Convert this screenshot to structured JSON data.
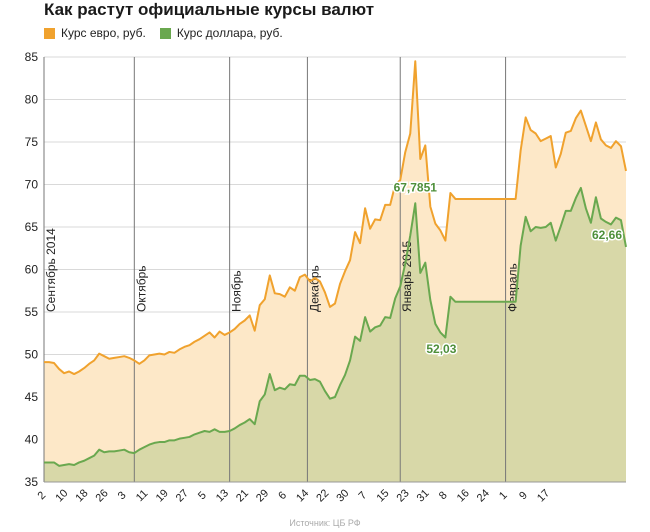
{
  "chart_data": {
    "type": "area",
    "title": "Как растут официальные курсы валют",
    "source": "Источник: ЦБ РФ",
    "ylim": [
      35,
      85
    ],
    "yticks": [
      35,
      40,
      45,
      50,
      55,
      60,
      65,
      70,
      75,
      80,
      85
    ],
    "grid": "horizontal",
    "legend_position": "top-left",
    "xticks": [
      {
        "i": 0,
        "label": "2"
      },
      {
        "i": 4,
        "label": "10"
      },
      {
        "i": 8,
        "label": "18"
      },
      {
        "i": 12,
        "label": "26"
      },
      {
        "i": 16,
        "label": "3"
      },
      {
        "i": 20,
        "label": "11"
      },
      {
        "i": 24,
        "label": "19"
      },
      {
        "i": 28,
        "label": "27"
      },
      {
        "i": 32,
        "label": "5"
      },
      {
        "i": 36,
        "label": "13"
      },
      {
        "i": 40,
        "label": "21"
      },
      {
        "i": 44,
        "label": "29"
      },
      {
        "i": 48,
        "label": "6"
      },
      {
        "i": 52,
        "label": "14"
      },
      {
        "i": 56,
        "label": "22"
      },
      {
        "i": 60,
        "label": "30"
      },
      {
        "i": 64,
        "label": "7"
      },
      {
        "i": 68,
        "label": "15"
      },
      {
        "i": 72,
        "label": "23"
      },
      {
        "i": 76,
        "label": "31"
      },
      {
        "i": 80,
        "label": "8"
      },
      {
        "i": 84,
        "label": "16"
      },
      {
        "i": 88,
        "label": "24"
      },
      {
        "i": 92,
        "label": "1"
      },
      {
        "i": 96,
        "label": "9"
      },
      {
        "i": 100,
        "label": "17"
      }
    ],
    "month_markers": [
      {
        "i": 0,
        "label": "Сентябрь 2014"
      },
      {
        "i": 18,
        "label": "Октябрь"
      },
      {
        "i": 37,
        "label": "Ноябрь"
      },
      {
        "i": 52.5,
        "label": "Декабрь"
      },
      {
        "i": 71,
        "label": "Январь 2015"
      },
      {
        "i": 92,
        "label": "Февраль"
      }
    ],
    "series": [
      {
        "name": "Курс евро, руб.",
        "color": "#f0a22e",
        "fill": "#fde8c8",
        "values": [
          49.1,
          49.1,
          49.0,
          48.3,
          47.8,
          48.0,
          47.7,
          48.0,
          48.4,
          48.9,
          49.3,
          50.1,
          49.8,
          49.5,
          49.6,
          49.7,
          49.8,
          49.6,
          49.3,
          48.9,
          49.3,
          49.9,
          50.0,
          50.1,
          50.0,
          50.3,
          50.2,
          50.6,
          50.9,
          51.1,
          51.5,
          51.8,
          52.2,
          52.6,
          52.0,
          52.7,
          52.3,
          52.6,
          53.0,
          53.6,
          54.0,
          54.6,
          52.8,
          55.8,
          56.5,
          59.3,
          57.2,
          57.1,
          56.8,
          57.9,
          57.5,
          59.1,
          59.4,
          58.6,
          59.0,
          58.6,
          57.3,
          55.6,
          56.0,
          58.3,
          59.8,
          61.1,
          64.4,
          63.1,
          67.2,
          64.8,
          65.9,
          65.8,
          67.6,
          67.6,
          70.0,
          70.5,
          73.8,
          76.0,
          84.5,
          73.0,
          74.6,
          67.4,
          65.4,
          64.6,
          63.4,
          69.0,
          68.3,
          68.3,
          68.3,
          68.3,
          68.3,
          68.3,
          68.3,
          68.3,
          68.3,
          68.3,
          68.3,
          68.3,
          68.3,
          74.0,
          77.9,
          76.4,
          76.0,
          75.1,
          75.4,
          75.7,
          72.0,
          73.6,
          76.1,
          76.3,
          77.8,
          78.7,
          76.9,
          75.1,
          77.3,
          75.3,
          74.6,
          74.3,
          75.1,
          74.5,
          71.6
        ]
      },
      {
        "name": "Курс доллара, руб.",
        "color": "#6aa84f",
        "fill": "#d8d8a8",
        "values": [
          37.3,
          37.3,
          37.3,
          36.9,
          37.0,
          37.1,
          37.0,
          37.3,
          37.5,
          37.8,
          38.1,
          38.8,
          38.5,
          38.6,
          38.6,
          38.7,
          38.8,
          38.5,
          38.4,
          38.8,
          39.1,
          39.4,
          39.6,
          39.7,
          39.7,
          39.9,
          39.9,
          40.1,
          40.2,
          40.3,
          40.6,
          40.8,
          41.0,
          40.9,
          41.2,
          40.9,
          40.9,
          41.0,
          41.3,
          41.7,
          42.0,
          42.4,
          41.8,
          44.5,
          45.3,
          47.7,
          45.8,
          46.1,
          45.9,
          46.5,
          46.4,
          47.5,
          47.5,
          47.0,
          47.1,
          46.8,
          45.7,
          44.8,
          45.0,
          46.4,
          47.6,
          49.3,
          52.1,
          51.6,
          54.4,
          52.7,
          53.2,
          53.4,
          54.4,
          54.3,
          56.6,
          58.0,
          60.7,
          64.0,
          67.79,
          59.6,
          60.8,
          56.4,
          53.6,
          52.6,
          52.0,
          56.8,
          56.2,
          56.2,
          56.2,
          56.2,
          56.2,
          56.2,
          56.2,
          56.2,
          56.2,
          56.2,
          56.2,
          56.2,
          56.2,
          62.8,
          66.2,
          64.5,
          65.0,
          64.9,
          65.0,
          65.5,
          63.4,
          65.1,
          66.9,
          66.9,
          68.4,
          69.6,
          67.2,
          65.5,
          68.5,
          66.0,
          65.6,
          65.3,
          66.1,
          65.8,
          62.66
        ]
      }
    ],
    "annotations": [
      {
        "text": "67,7851",
        "series": 1,
        "i": 74,
        "value": 67.79
      },
      {
        "text": "52,03",
        "series": 1,
        "i": 80,
        "value": 52.03
      },
      {
        "text": "62,66",
        "series": 1,
        "i": 116,
        "value": 62.66
      }
    ]
  },
  "legend": {
    "euro_label": "Курс евро, руб.",
    "dollar_label": "Курс доллара, руб."
  },
  "colors": {
    "euro": "#f0a22e",
    "dollar": "#6aa84f",
    "euro_fill": "#fde8c8",
    "dollar_fill": "#d8d8a8"
  }
}
